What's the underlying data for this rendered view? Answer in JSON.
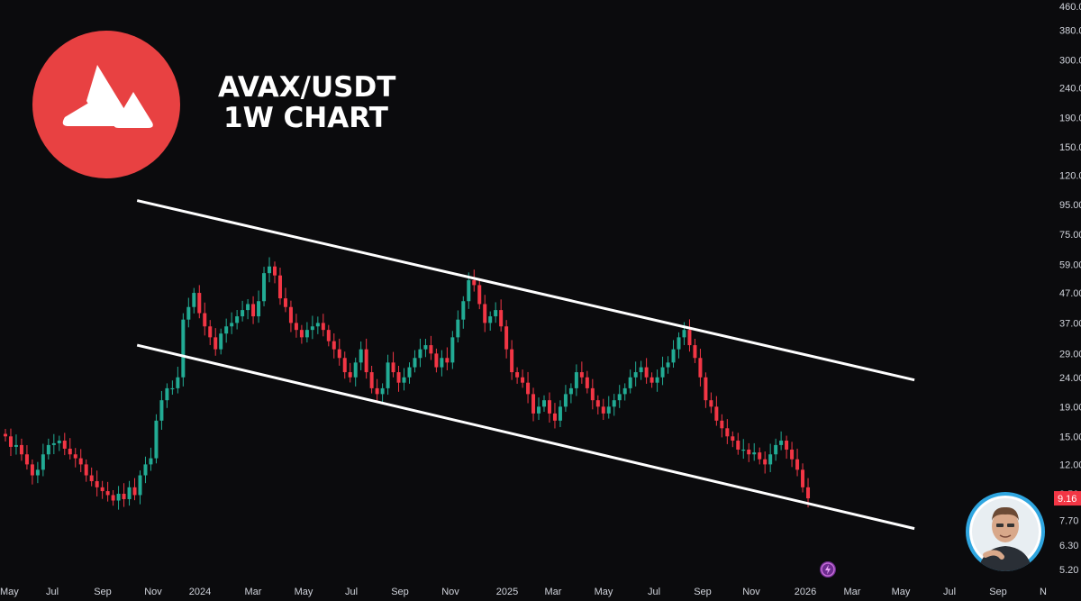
{
  "header": {
    "line1": "AVAX/USDT",
    "line2": "1W CHART"
  },
  "icons": {
    "logo": "avalanche-logo-icon",
    "avatar": "author-avatar-icon",
    "flash": "lightning-icon"
  },
  "colors": {
    "up": "#22ab94",
    "down": "#f23645",
    "logo": "#e84142",
    "price_tag": "#f23645",
    "channel": "#ffffff"
  },
  "chart_data": {
    "type": "candlestick",
    "pair": "AVAX/USDT",
    "timeframe": "1W",
    "y_scale": "log",
    "ylim": [
      5.2,
      460
    ],
    "y_ticks": [
      460,
      380,
      300,
      240,
      190,
      150,
      120,
      95,
      75,
      59,
      47,
      37,
      29,
      24,
      19,
      15,
      12,
      9.5,
      7.7,
      6.3,
      5.2
    ],
    "y_tick_labels": [
      "460.0",
      "380.0",
      "300.0",
      "240.0",
      "190.0",
      "150.0",
      "120.0",
      "95.00",
      "75.00",
      "59.00",
      "47.00",
      "37.00",
      "29.00",
      "24.00",
      "19.00",
      "15.00",
      "12.00",
      "9.50",
      "7.70",
      "6.30",
      "5.20"
    ],
    "x_ticks": [
      "May",
      "Jul",
      "Sep",
      "Nov",
      "2024",
      "Mar",
      "May",
      "Jul",
      "Sep",
      "Nov",
      "2025",
      "Mar",
      "May",
      "Jul",
      "Sep",
      "Nov",
      "2026",
      "Mar",
      "May",
      "Jul",
      "Sep",
      "N"
    ],
    "last_price": 9.16,
    "last_price_label": "9.16",
    "channel": {
      "upper": {
        "from": [
          "2023-11",
          98
        ],
        "to": [
          "2026-06",
          23.5
        ]
      },
      "lower": {
        "from": [
          "2023-11",
          31
        ],
        "to": [
          "2026-06",
          7.2
        ]
      }
    },
    "closes": [
      15.0,
      13.8,
      14.0,
      13.0,
      12.0,
      11.0,
      11.5,
      13.0,
      14.0,
      14.2,
      14.5,
      13.6,
      13.0,
      12.6,
      12.0,
      11.0,
      10.5,
      10.0,
      9.7,
      9.4,
      9.0,
      9.5,
      9.1,
      10.0,
      9.4,
      11.0,
      12.0,
      12.6,
      17.0,
      20.0,
      22.0,
      22.0,
      24.0,
      38.0,
      42.0,
      47.0,
      40.0,
      36.0,
      33.0,
      30.0,
      34.0,
      36.0,
      37.0,
      39.0,
      41.0,
      43.0,
      39.0,
      44.0,
      55.0,
      58.0,
      54.0,
      45.0,
      42.0,
      37.0,
      35.0,
      33.0,
      35.0,
      36.0,
      37.0,
      35.0,
      32.0,
      30.0,
      28.0,
      25.0,
      24.0,
      27.0,
      30.0,
      25.0,
      22.0,
      21.0,
      22.0,
      27.0,
      25.0,
      23.0,
      24.0,
      26.0,
      28.0,
      30.0,
      31.0,
      29.0,
      26.0,
      28.0,
      27.0,
      33.0,
      38.0,
      44.0,
      52.0,
      50.0,
      43.0,
      37.0,
      39.0,
      41.0,
      36.0,
      30.0,
      25.0,
      24.0,
      23.0,
      21.0,
      18.0,
      19.0,
      20.0,
      18.0,
      17.0,
      19.0,
      21.0,
      22.0,
      25.0,
      24.0,
      22.0,
      20.0,
      19.0,
      18.0,
      19.0,
      20.0,
      21.0,
      22.0,
      24.0,
      25.0,
      26.0,
      24.0,
      23.0,
      24.0,
      26.0,
      27.0,
      30.0,
      33.0,
      35.0,
      31.0,
      28.0,
      24.0,
      20.0,
      19.0,
      17.0,
      16.0,
      15.0,
      14.5,
      13.5,
      13.5,
      13.0,
      13.2,
      12.5,
      12.0,
      13.0,
      14.0,
      14.5,
      13.5,
      12.5,
      11.5,
      10.0,
      9.16
    ]
  }
}
